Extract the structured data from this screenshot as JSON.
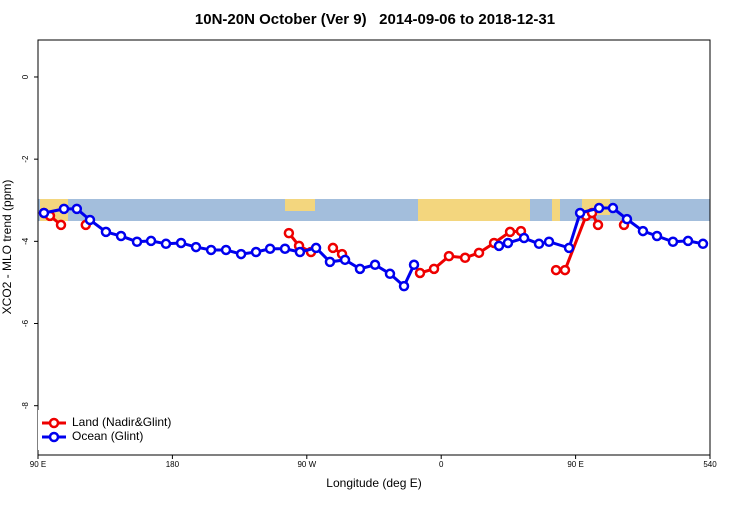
{
  "chart_data": {
    "type": "line",
    "title": "10N-20N October (Ver 9)   2014-09-06 to 2018-12-31",
    "xlabel": "Longitude (deg E)",
    "ylabel": "XCO2 - MLO trend (ppm)",
    "xlim": [
      90,
      540
    ],
    "xticks": [
      {
        "value": 90,
        "label": "90 E"
      },
      180,
      {
        "value": 270,
        "label": "90 W"
      },
      {
        "value": 360,
        "label": "0"
      },
      {
        "value": 450,
        "label": "90 E"
      },
      540
    ],
    "ylim": [
      -9.2,
      0.9
    ],
    "yticks": [
      -8,
      -6,
      -4,
      -2,
      0
    ],
    "legend": "bottom-left",
    "series": [
      {
        "name": "Land (Nadir&Glint)",
        "color": "#ee0000",
        "x": [
          94,
          98,
          105.4,
          null,
          122,
          null,
          258,
          264.8,
          272.8,
          null,
          287.5,
          293.6,
          null,
          345.8,
          355.2,
          365.2,
          376,
          385.3,
          395.4,
          406.1,
          413.4,
          null,
          436.9,
          442.9,
          457,
          461,
          465,
          null,
          482.4
        ],
        "values": [
          -3.31,
          -3.38,
          -3.6,
          null,
          -3.6,
          null,
          -3.8,
          -4.11,
          -4.26,
          null,
          -4.16,
          -4.31,
          null,
          -4.77,
          -4.67,
          -4.36,
          -4.4,
          -4.28,
          -4.04,
          -3.77,
          -3.75,
          null,
          -4.7,
          -4.7,
          -3.38,
          -3.31,
          -3.6,
          null,
          -3.6
        ]
      },
      {
        "name": "Ocean (Glint)",
        "color": "#0000ee",
        "x": [
          94,
          107.4,
          116,
          124.8,
          135.5,
          145.6,
          156.3,
          165.7,
          175.7,
          185.8,
          195.8,
          205.9,
          215.9,
          226,
          236,
          245.4,
          255.4,
          265.4,
          276.2,
          285.5,
          295.6,
          305.6,
          315.7,
          325.7,
          335.1,
          341.8,
          null,
          398.7,
          404.7,
          415.5,
          425.5,
          432.2,
          445.6,
          453,
          465.7,
          475,
          484.4,
          495.1,
          504.5,
          515.2,
          525.3,
          535.3
        ],
        "values": [
          -3.31,
          -3.21,
          -3.21,
          -3.48,
          -3.77,
          -3.87,
          -4.01,
          -3.99,
          -4.06,
          -4.04,
          -4.14,
          -4.21,
          -4.21,
          -4.31,
          -4.26,
          -4.18,
          -4.18,
          -4.26,
          -4.16,
          -4.5,
          -4.45,
          -4.67,
          -4.57,
          -4.79,
          -5.09,
          -4.57,
          null,
          -4.11,
          -4.04,
          -3.92,
          -4.06,
          -4.01,
          -4.16,
          -3.31,
          -3.19,
          -3.19,
          -3.46,
          -3.75,
          -3.87,
          -4.01,
          -3.99,
          -4.06
        ]
      }
    ]
  }
}
